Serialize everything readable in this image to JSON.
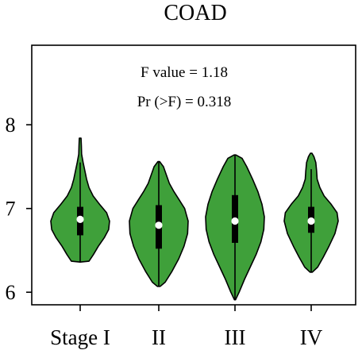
{
  "chart_data": {
    "type": "violin",
    "title": "COAD",
    "annotations": [
      "F value = 1.18",
      "Pr (>F) = 0.318"
    ],
    "categories": [
      "Stage I",
      "II",
      "III",
      "IV"
    ],
    "ylim": [
      5.85,
      8.95
    ],
    "y_ticks": [
      6,
      7,
      8
    ],
    "y_tick_labels": [
      "6",
      "7",
      "8"
    ],
    "grid": false,
    "fill_color": "#3fa03a",
    "edge_color": "#000000",
    "median_color": "#ffffff",
    "violins": [
      {
        "category": "Stage I",
        "whisker": [
          6.36,
          7.55
        ],
        "q1": 6.68,
        "q3": 7.02,
        "median": 6.87,
        "profile": [
          [
            6.36,
            0.0
          ],
          [
            6.37,
            0.3
          ],
          [
            6.45,
            0.45
          ],
          [
            6.55,
            0.62
          ],
          [
            6.65,
            0.82
          ],
          [
            6.75,
            0.97
          ],
          [
            6.85,
            1.0
          ],
          [
            6.95,
            0.9
          ],
          [
            7.05,
            0.66
          ],
          [
            7.15,
            0.44
          ],
          [
            7.25,
            0.3
          ],
          [
            7.35,
            0.22
          ],
          [
            7.45,
            0.16
          ],
          [
            7.55,
            0.1
          ],
          [
            7.65,
            0.05
          ],
          [
            7.75,
            0.04
          ],
          [
            7.84,
            0.03
          ]
        ]
      },
      {
        "category": "II",
        "whisker": [
          6.07,
          7.56
        ],
        "q1": 6.52,
        "q3": 7.04,
        "median": 6.8,
        "profile": [
          [
            6.07,
            0.05
          ],
          [
            6.12,
            0.22
          ],
          [
            6.25,
            0.45
          ],
          [
            6.4,
            0.68
          ],
          [
            6.55,
            0.86
          ],
          [
            6.7,
            0.98
          ],
          [
            6.85,
            1.0
          ],
          [
            7.0,
            0.88
          ],
          [
            7.1,
            0.7
          ],
          [
            7.2,
            0.52
          ],
          [
            7.3,
            0.36
          ],
          [
            7.4,
            0.26
          ],
          [
            7.5,
            0.16
          ],
          [
            7.56,
            0.03
          ]
        ]
      },
      {
        "category": "III",
        "whisker": [
          5.91,
          7.64
        ],
        "q1": 6.59,
        "q3": 7.16,
        "median": 6.85,
        "profile": [
          [
            5.91,
            0.02
          ],
          [
            6.0,
            0.14
          ],
          [
            6.15,
            0.32
          ],
          [
            6.3,
            0.52
          ],
          [
            6.45,
            0.72
          ],
          [
            6.6,
            0.88
          ],
          [
            6.75,
            0.98
          ],
          [
            6.9,
            1.0
          ],
          [
            7.05,
            0.92
          ],
          [
            7.2,
            0.78
          ],
          [
            7.35,
            0.6
          ],
          [
            7.5,
            0.4
          ],
          [
            7.6,
            0.24
          ],
          [
            7.64,
            0.03
          ]
        ]
      },
      {
        "category": "IV",
        "whisker": [
          6.24,
          7.47
        ],
        "q1": 6.71,
        "q3": 7.02,
        "median": 6.85,
        "profile": [
          [
            6.24,
            0.04
          ],
          [
            6.3,
            0.24
          ],
          [
            6.42,
            0.45
          ],
          [
            6.55,
            0.66
          ],
          [
            6.7,
            0.88
          ],
          [
            6.85,
            1.0
          ],
          [
            6.95,
            0.96
          ],
          [
            7.05,
            0.74
          ],
          [
            7.15,
            0.48
          ],
          [
            7.25,
            0.32
          ],
          [
            7.35,
            0.22
          ],
          [
            7.45,
            0.2
          ],
          [
            7.55,
            0.17
          ],
          [
            7.62,
            0.1
          ],
          [
            7.66,
            0.03
          ]
        ]
      }
    ]
  }
}
